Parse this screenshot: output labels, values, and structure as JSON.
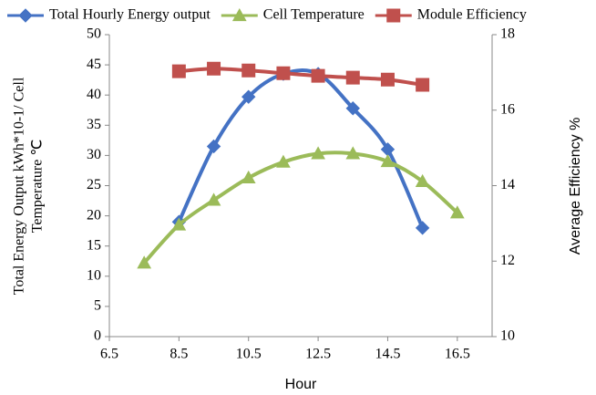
{
  "chart_data": {
    "type": "line",
    "xlabel": "Hour",
    "ylabel": [
      "Total Energy Output kWh*10-1/ Cell",
      "Temperature ℃"
    ],
    "y2label": "Average Efficiency %",
    "xlim": [
      6.5,
      17.5
    ],
    "xticks": [
      6.5,
      8.5,
      10.5,
      12.5,
      14.5,
      16.5
    ],
    "ylim": [
      0,
      50
    ],
    "yticks": [
      0,
      5,
      10,
      15,
      20,
      25,
      30,
      35,
      40,
      45,
      50
    ],
    "y2lim": [
      10,
      18
    ],
    "y2ticks": [
      10,
      12,
      14,
      16,
      18
    ],
    "grid": false,
    "legend": "top",
    "series": [
      {
        "name": "Total Hourly Energy output",
        "color": "#4472c4",
        "marker": "diamond",
        "x": [
          8.5,
          9.5,
          10.5,
          11.5,
          12.5,
          13.5,
          14.5,
          15.5
        ],
        "values": [
          19,
          31.5,
          39.7,
          43.5,
          43.5,
          37.8,
          31,
          18
        ]
      },
      {
        "name": "Cell Temperature",
        "color": "#9bbb59",
        "marker": "triangle",
        "x": [
          7.5,
          8.5,
          9.5,
          10.5,
          11.5,
          12.5,
          13.5,
          14.5,
          15.5,
          16.5
        ],
        "values": [
          12.2,
          18.5,
          22.6,
          26.3,
          28.9,
          30.3,
          30.3,
          29,
          25.7,
          20.5
        ]
      },
      {
        "name": "Module Efficiency",
        "color": "#c0504d",
        "marker": "square",
        "axis": "y2",
        "x": [
          8.5,
          9.5,
          10.5,
          11.5,
          12.5,
          13.5,
          14.5,
          15.5
        ],
        "values": [
          17.03,
          17.1,
          17.05,
          16.98,
          16.91,
          16.86,
          16.81,
          16.67
        ]
      }
    ]
  }
}
